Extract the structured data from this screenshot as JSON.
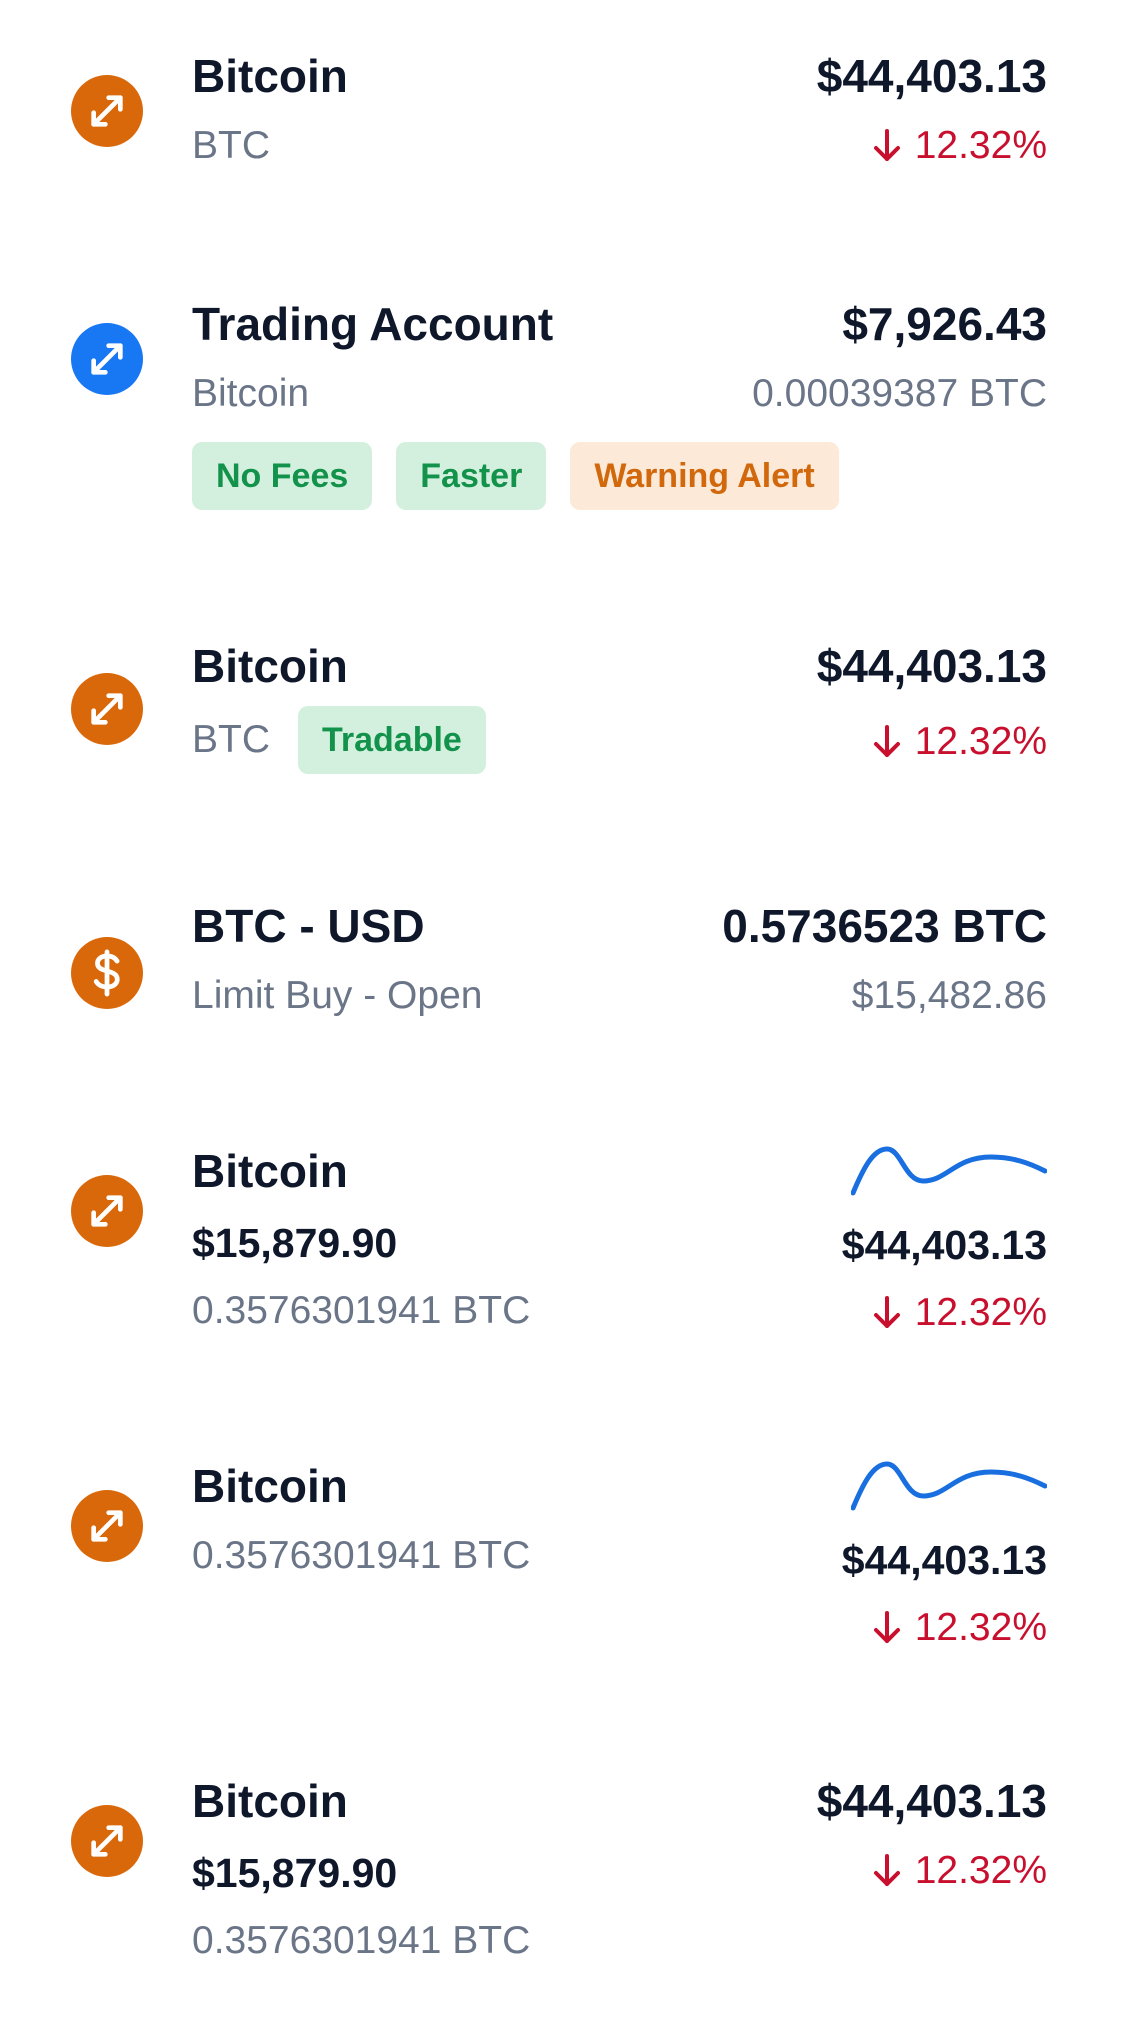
{
  "colors": {
    "primary_text": "#0f172a",
    "secondary_text": "#6b7588",
    "negative": "#c8102e",
    "icon_orange": "#d9680a",
    "icon_blue": "#1877f2",
    "badge_green_bg": "#d3f0de",
    "badge_green_text": "#12924a",
    "badge_orange_bg": "#fde9d7",
    "badge_orange_text": "#d1680c",
    "sparkline": "#1a6fe0"
  },
  "rows": [
    {
      "icon": "arrows-expand-icon",
      "name": "Bitcoin",
      "symbol": "BTC",
      "price": "$44,403.13",
      "change": "12.32%"
    },
    {
      "icon": "arrows-expand-icon",
      "name": "Trading Account",
      "asset": "Bitcoin",
      "balance": "$7,926.43",
      "crypto_amount": "0.00039387 BTC",
      "badges": [
        {
          "label": "No Fees",
          "tone": "green"
        },
        {
          "label": "Faster",
          "tone": "green"
        },
        {
          "label": "Warning Alert",
          "tone": "orange"
        }
      ]
    },
    {
      "icon": "arrows-expand-icon",
      "name": "Bitcoin",
      "symbol": "BTC",
      "badge": "Tradable",
      "price": "$44,403.13",
      "change": "12.32%"
    },
    {
      "icon": "dollar-icon",
      "pair": "BTC - USD",
      "order": "Limit Buy - Open",
      "amount": "0.5736523 BTC",
      "value": "$15,482.86"
    },
    {
      "icon": "arrows-expand-icon",
      "name": "Bitcoin",
      "holding_value": "$15,879.90",
      "holding_amount": "0.3576301941 BTC",
      "price": "$44,403.13",
      "change": "12.32%"
    },
    {
      "icon": "arrows-expand-icon",
      "name": "Bitcoin",
      "holding_amount": "0.3576301941 BTC",
      "price": "$44,403.13",
      "change": "12.32%"
    },
    {
      "icon": "arrows-expand-icon",
      "name": "Bitcoin",
      "holding_value": "$15,879.90",
      "holding_amount": "0.3576301941 BTC",
      "price": "$44,403.13",
      "change": "12.32%"
    }
  ]
}
